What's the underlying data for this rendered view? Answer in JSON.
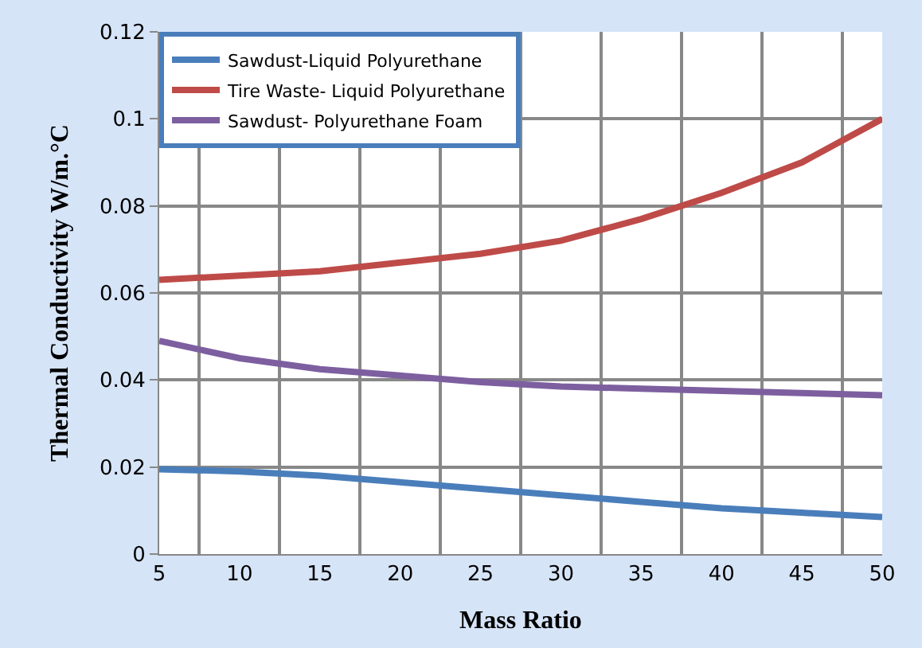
{
  "chart_data": {
    "type": "line",
    "xlabel": "Mass Ratio",
    "ylabel": "Thermal Conductivity W/m.°C",
    "categories": [
      "5",
      "10",
      "15",
      "20",
      "25",
      "30",
      "35",
      "40",
      "45",
      "50"
    ],
    "series": [
      {
        "name": "Sawdust-Liquid Polyurethane",
        "color": "#4a7ebb",
        "values": [
          0.0195,
          0.019,
          0.018,
          0.0165,
          0.015,
          0.0135,
          0.012,
          0.0105,
          0.0095,
          0.0085
        ]
      },
      {
        "name": "Tire Waste- Liquid Polyurethane",
        "color": "#be4b48",
        "values": [
          0.063,
          0.064,
          0.065,
          0.067,
          0.069,
          0.072,
          0.077,
          0.083,
          0.09,
          0.1
        ]
      },
      {
        "name": "Sawdust- Polyurethane Foam",
        "color": "#7d5fa0",
        "values": [
          0.049,
          0.045,
          0.0425,
          0.041,
          0.0395,
          0.0385,
          0.038,
          0.0375,
          0.037,
          0.0365
        ]
      }
    ],
    "ylim": [
      0,
      0.12
    ],
    "yticks": [
      0,
      0.02,
      0.04,
      0.06,
      0.08,
      0.1,
      0.12
    ],
    "grid": true,
    "legend": "top left",
    "marker": "none",
    "line_style": "solid"
  }
}
